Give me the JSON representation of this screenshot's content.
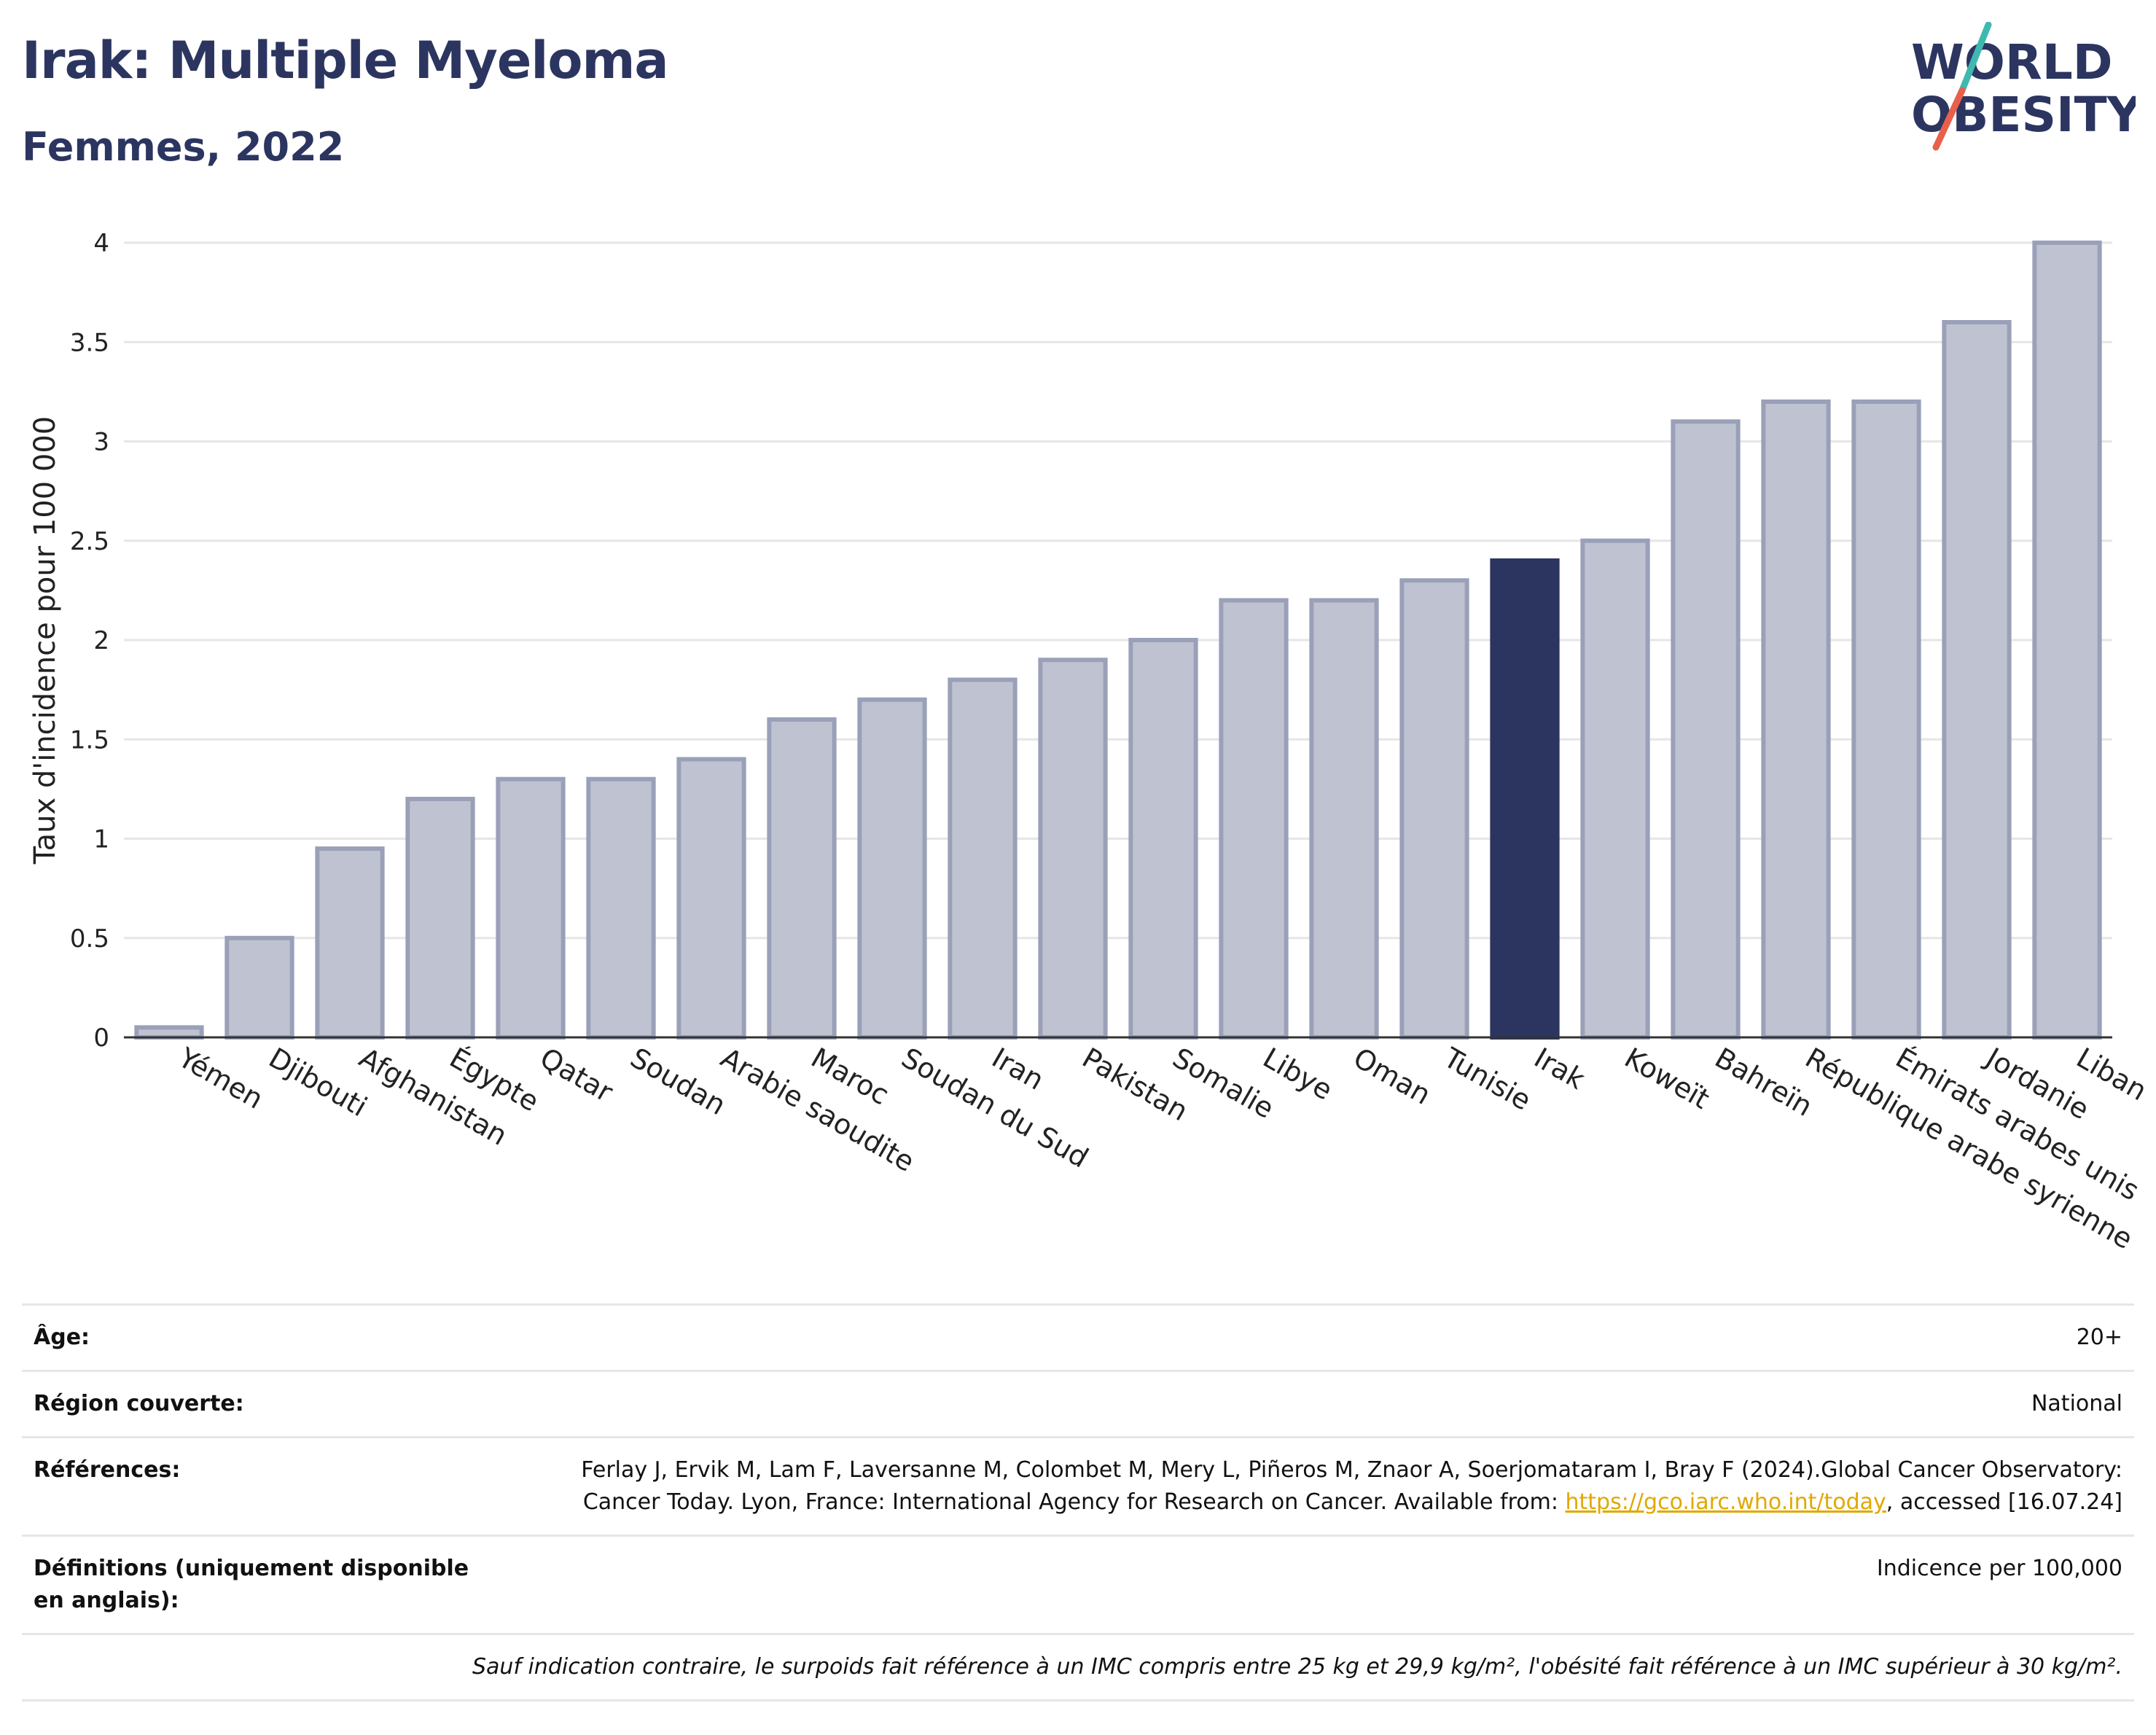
{
  "header": {
    "title": "Irak: Multiple Myeloma",
    "subtitle": "Femmes, 2022"
  },
  "logo": {
    "line1": "WORLD",
    "line2": "OBESITY",
    "colors": {
      "text": "#2b3560",
      "slash_teal": "#3fb8b0",
      "slash_red": "#e8604c"
    }
  },
  "colors": {
    "bar_fill": "#bfc3d1",
    "bar_stroke": "#9aa0b8",
    "highlight": "#2b3560",
    "grid": "#e6e6e6",
    "axis": "#333333"
  },
  "chart_data": {
    "type": "bar",
    "title": "Irak: Multiple Myeloma",
    "subtitle": "Femmes, 2022",
    "xlabel": "",
    "ylabel": "Taux d'incidence pour 100 000",
    "ylim": [
      0,
      4
    ],
    "yticks": [
      0,
      0.5,
      1,
      1.5,
      2,
      2.5,
      3,
      3.5,
      4
    ],
    "ytick_labels": [
      "0",
      "0.5",
      "1",
      "1.5",
      "2",
      "2.5",
      "3",
      "3.5",
      "4"
    ],
    "grid": true,
    "highlight": "Irak",
    "categories": [
      "Yémen",
      "Djibouti",
      "Afghanistan",
      "Égypte",
      "Qatar",
      "Soudan",
      "Arabie saoudite",
      "Maroc",
      "Soudan du Sud",
      "Iran",
      "Pakistan",
      "Somalie",
      "Libye",
      "Oman",
      "Tunisie",
      "Irak",
      "Koweït",
      "Bahreïn",
      "République arabe syrienne",
      "Émirats arabes unis",
      "Jordanie",
      "Liban"
    ],
    "values": [
      0.05,
      0.5,
      0.95,
      1.2,
      1.3,
      1.3,
      1.4,
      1.6,
      1.7,
      1.8,
      1.9,
      2.0,
      2.2,
      2.2,
      2.3,
      2.4,
      2.5,
      3.1,
      3.2,
      3.2,
      3.6,
      4.0
    ]
  },
  "info": {
    "age_label": "Âge:",
    "age_value": "20+",
    "region_label": "Région couverte:",
    "region_value": "National",
    "references_label": "Références:",
    "references_text": "Ferlay J, Ervik M, Lam F, Laversanne M, Colombet M, Mery L, Piñeros M, Znaor A, Soerjomataram I, Bray F (2024).Global Cancer Observatory: Cancer Today. Lyon, France: International Agency for Research on Cancer. Available from: ",
    "references_link": "https://gco.iarc.who.int/today",
    "references_suffix": ", accessed [16.07.24]",
    "definitions_label": "Définitions (uniquement disponible en anglais):",
    "definitions_value": "Indicence per 100,000",
    "note": "Sauf indication contraire, le surpoids fait référence à un IMC compris entre 25 kg et 29,9 kg/m², l'obésité fait référence à un IMC supérieur à 30 kg/m²."
  }
}
